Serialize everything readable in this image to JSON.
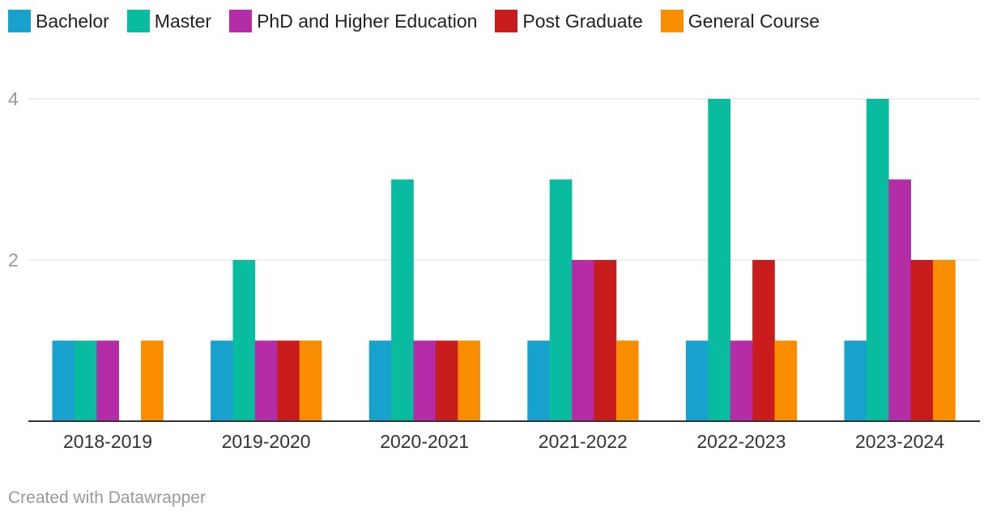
{
  "chart_data": {
    "type": "bar",
    "categories": [
      "2018-2019",
      "2019-2020",
      "2020-2021",
      "2021-2022",
      "2022-2023",
      "2023-2024"
    ],
    "series": [
      {
        "name": "Bachelor",
        "color": "#18a1cd",
        "values": [
          1,
          1,
          1,
          1,
          1,
          1
        ]
      },
      {
        "name": "Master",
        "color": "#09bb9f",
        "values": [
          1,
          2,
          3,
          3,
          4,
          4
        ]
      },
      {
        "name": "PhD and Higher Education",
        "color": "#b52ca7",
        "values": [
          1,
          1,
          1,
          2,
          1,
          3
        ]
      },
      {
        "name": "Post Graduate",
        "color": "#c91d1d",
        "values": [
          0,
          1,
          1,
          2,
          2,
          2
        ]
      },
      {
        "name": "General Course",
        "color": "#fa8c00",
        "values": [
          1,
          1,
          1,
          1,
          1,
          2
        ]
      }
    ],
    "yticks": [
      "2",
      "4"
    ],
    "ylim": [
      0,
      4
    ],
    "grid": true,
    "legend": "top-left"
  },
  "footer": {
    "credit": "Created with Datawrapper"
  }
}
